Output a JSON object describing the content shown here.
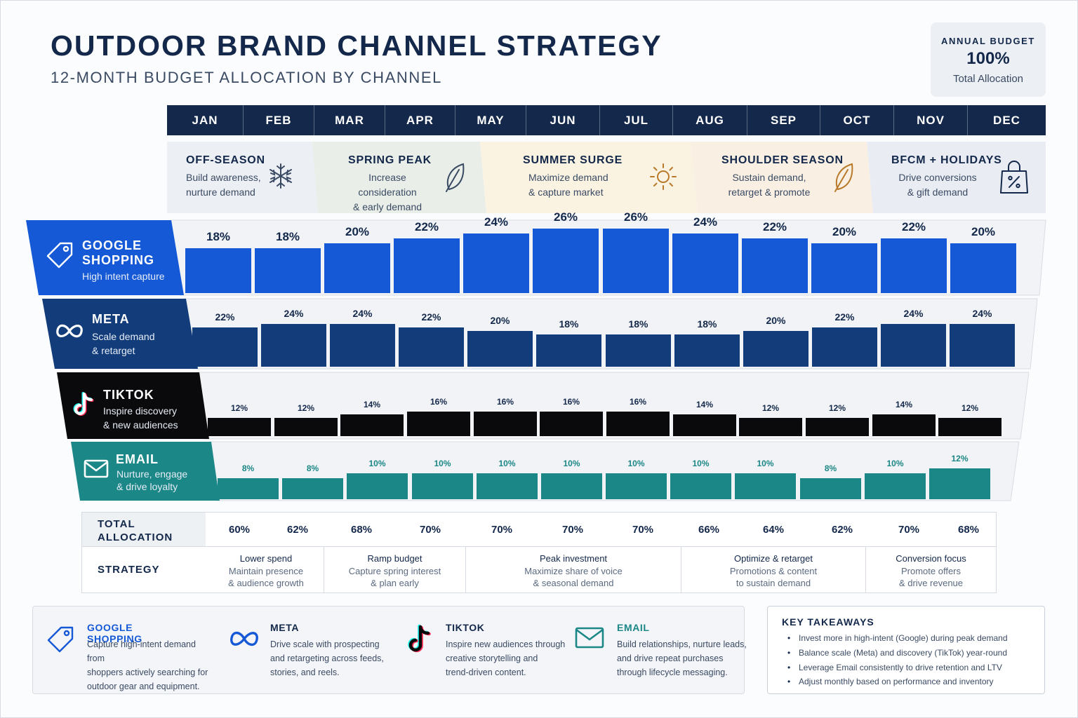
{
  "title": "OUTDOOR BRAND CHANNEL STRATEGY",
  "subtitle": "12-MONTH BUDGET ALLOCATION BY CHANNEL",
  "budget": {
    "label": "ANNUAL BUDGET",
    "value": "100%",
    "sub": "Total Allocation"
  },
  "months": [
    "JAN",
    "FEB",
    "MAR",
    "APR",
    "MAY",
    "JUN",
    "JUL",
    "AUG",
    "SEP",
    "OCT",
    "NOV",
    "DEC"
  ],
  "seasons": [
    {
      "title": "OFF-SEASON",
      "desc1": "Build awareness,",
      "desc2": "nurture demand",
      "icon": "snowflake-icon",
      "color": "#13284a"
    },
    {
      "title": "SPRING PEAK",
      "desc1": "Increase consideration",
      "desc2": "& early demand",
      "icon": "leaf-icon",
      "color": "#13284a"
    },
    {
      "title": "SUMMER SURGE",
      "desc1": "Maximize demand",
      "desc2": "& capture market",
      "icon": "sun-icon",
      "color": "#a66a18"
    },
    {
      "title": "SHOULDER SEASON",
      "desc1": "Sustain demand,",
      "desc2": "retarget & promote",
      "icon": "leaf-icon",
      "color": "#a66a18"
    },
    {
      "title": "BFCM + HOLIDAYS",
      "desc1": "Drive conversions",
      "desc2": "& gift demand",
      "icon": "shopping-bag-icon",
      "color": "#1d4fa0"
    }
  ],
  "colors": {
    "google": "#1559d6",
    "meta": "#123d7a",
    "tiktok": "#0a0a0c",
    "email": "#1b8786",
    "navy": "#13284a"
  },
  "chart_data": {
    "type": "bar",
    "categories": [
      "JAN",
      "FEB",
      "MAR",
      "APR",
      "MAY",
      "JUN",
      "JUL",
      "AUG",
      "SEP",
      "OCT",
      "NOV",
      "DEC"
    ],
    "series": [
      {
        "name": "GOOGLE SHOPPING",
        "desc": "High intent capture",
        "values": [
          18,
          18,
          20,
          22,
          24,
          26,
          26,
          24,
          22,
          20,
          22,
          20
        ]
      },
      {
        "name": "META",
        "desc1": "Scale demand",
        "desc2": "& retarget",
        "values": [
          22,
          24,
          24,
          22,
          20,
          18,
          18,
          18,
          20,
          22,
          24,
          24
        ]
      },
      {
        "name": "TIKTOK",
        "desc1": "Inspire discovery",
        "desc2": "& new audiences",
        "values": [
          12,
          12,
          14,
          16,
          16,
          16,
          16,
          14,
          12,
          12,
          14,
          12
        ]
      },
      {
        "name": "EMAIL",
        "desc1": "Nurture, engage",
        "desc2": "& drive loyalty",
        "values": [
          8,
          8,
          10,
          10,
          10,
          10,
          10,
          10,
          10,
          8,
          10,
          12
        ]
      }
    ],
    "totals_label": "TOTAL ALLOCATION",
    "totals": [
      60,
      62,
      68,
      70,
      70,
      70,
      70,
      66,
      64,
      62,
      70,
      68
    ],
    "unit": "%"
  },
  "strategy": {
    "label": "STRATEGY",
    "groups": [
      {
        "lines": [
          "Lower spend",
          "Maintain presence",
          "& audience growth"
        ]
      },
      {
        "lines": [
          "Ramp budget",
          "Capture spring interest",
          "& plan early"
        ]
      },
      {
        "lines": [
          "Peak investment",
          "Maximize share of voice",
          "& seasonal demand"
        ]
      },
      {
        "lines": [
          "Optimize & retarget",
          "Promotions & content",
          "to sustain demand"
        ]
      },
      {
        "lines": [
          "Conversion focus",
          "Promote offers",
          "& drive revenue"
        ]
      }
    ]
  },
  "legend": [
    {
      "title": "GOOGLE SHOPPING",
      "lines": [
        "Capture high-intent demand from",
        "shoppers actively searching for",
        "outdoor gear and equipment."
      ],
      "icon": "tag-icon"
    },
    {
      "title": "META",
      "lines": [
        "Drive scale with prospecting",
        "and retargeting across feeds,",
        "stories, and reels."
      ],
      "icon": "meta-infinity-icon"
    },
    {
      "title": "TIKTOK",
      "lines": [
        "Inspire new audiences through",
        "creative storytelling and",
        "trend-driven content."
      ],
      "icon": "tiktok-note-icon"
    },
    {
      "title": "EMAIL",
      "lines": [
        "Build relationships, nurture leads,",
        "and drive repeat purchases",
        "through lifecycle messaging."
      ],
      "icon": "envelope-icon"
    }
  ],
  "takeaways": {
    "title": "KEY TAKEAWAYS",
    "items": [
      "Invest more in high-intent (Google) during peak demand",
      "Balance scale (Meta) and discovery (TikTok) year-round",
      "Leverage Email consistently to drive retention and LTV",
      "Adjust monthly based on performance and inventory"
    ]
  }
}
